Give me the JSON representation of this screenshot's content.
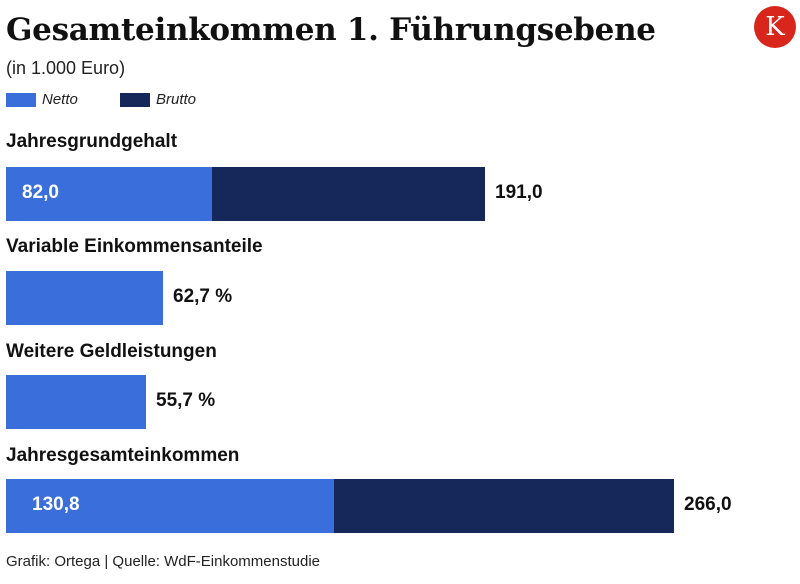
{
  "title": "Gesamteinkommen 1. Führungsebene",
  "subtitle": "(in 1.000 Euro)",
  "logo": {
    "letter": "K",
    "color": "#d9261c"
  },
  "colors": {
    "netto": "#3a6fdb",
    "brutto": "#16285a"
  },
  "footer": "Grafik: Ortega | Quelle: WdF-Einkommenstudie",
  "chart_data": {
    "type": "bar",
    "orientation": "horizontal",
    "title": "Gesamteinkommen 1. Führungsebene",
    "subtitle": "(in 1.000 Euro)",
    "legend": {
      "placement": "top-left",
      "entries": [
        "Netto",
        "Brutto"
      ]
    },
    "categories": [
      "Jahresgrundgehalt",
      "Variable Einkommensanteile",
      "Weitere Geldleistungen",
      "Jahresgesamteinkommen"
    ],
    "series": [
      {
        "name": "Netto",
        "values": [
          82.0,
          null,
          null,
          130.8
        ]
      },
      {
        "name": "Brutto",
        "values": [
          191.0,
          null,
          null,
          266.0
        ]
      }
    ],
    "rows": [
      {
        "category": "Jahresgrundgehalt",
        "netto": 82.0,
        "brutto": 191.0,
        "inner_label": "82,0",
        "outer_label": "191,0"
      },
      {
        "category": "Variable Einkommensanteile",
        "percent": 62.7,
        "outer_label": "62,7 %"
      },
      {
        "category": "Weitere Geldleistungen",
        "percent": 55.7,
        "outer_label": "55,7 %"
      },
      {
        "category": "Jahresgesamteinkommen",
        "netto": 130.8,
        "brutto": 266.0,
        "inner_label": "130,8",
        "outer_label": "266,0"
      }
    ],
    "grid": false
  }
}
